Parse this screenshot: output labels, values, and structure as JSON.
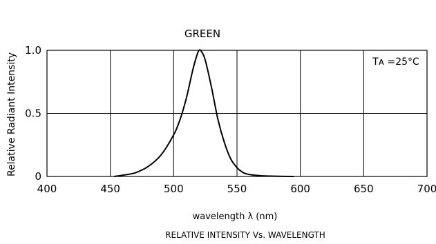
{
  "chart_data": {
    "type": "line",
    "title": "GREEN",
    "caption": "RELATIVE INTENSITY Vs. WAVELENGTH",
    "xlabel": "wavelength λ  (nm)",
    "ylabel": "Relative Radiant Intensity",
    "annotation": "Tᴀ =25°C",
    "xlim": [
      400,
      700
    ],
    "ylim": [
      0,
      1.0
    ],
    "x_ticks": [
      "400",
      "450",
      "500",
      "550",
      "600",
      "650",
      "700"
    ],
    "y_ticks": [
      "0",
      "0.5",
      "1.0"
    ],
    "grid": true,
    "line_color": "#000000",
    "series": [
      {
        "x": [
          453,
          460,
          470,
          480,
          490,
          500,
          505,
          510,
          515,
          518,
          520,
          522,
          525,
          530,
          535,
          540,
          545,
          550,
          555,
          560,
          570,
          580,
          595
        ],
        "y": [
          0.0,
          0.01,
          0.03,
          0.08,
          0.17,
          0.33,
          0.45,
          0.62,
          0.84,
          0.95,
          1.0,
          0.99,
          0.92,
          0.7,
          0.45,
          0.27,
          0.14,
          0.07,
          0.03,
          0.015,
          0.005,
          0.002,
          0.0
        ]
      }
    ]
  }
}
